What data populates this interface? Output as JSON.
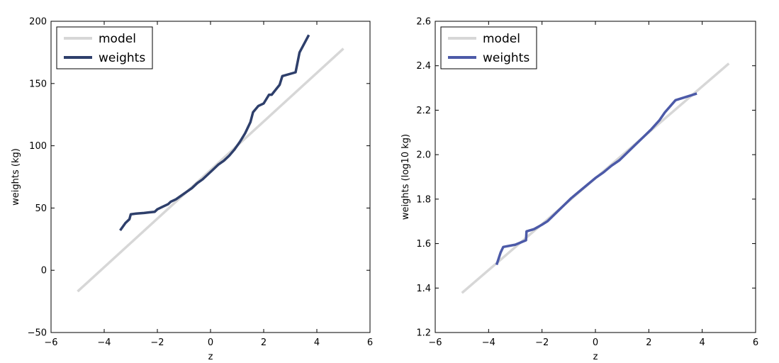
{
  "chart_data": [
    {
      "type": "line",
      "xlabel": "z",
      "ylabel": "weights (kg)",
      "xlim": [
        -6,
        6
      ],
      "ylim": [
        -50,
        200
      ],
      "xticks": [
        -6,
        -4,
        -2,
        0,
        2,
        4,
        6
      ],
      "yticks": [
        -50,
        0,
        50,
        100,
        150,
        200
      ],
      "xtick_labels": [
        "−6",
        "−4",
        "−2",
        "0",
        "2",
        "4",
        "6"
      ],
      "ytick_labels": [
        "−50",
        "0",
        "50",
        "100",
        "150",
        "200"
      ],
      "legend_position": "top-left",
      "grid": false,
      "series": [
        {
          "name": "model",
          "color": "#d7d7d7",
          "x": [
            -5.0,
            5.0
          ],
          "y": [
            -17.0,
            178.0
          ]
        },
        {
          "name": "weights",
          "color": "#2e3f6b",
          "x": [
            -3.4,
            -3.2,
            -3.05,
            -3.0,
            -2.8,
            -2.5,
            -2.3,
            -2.1,
            -2.0,
            -1.8,
            -1.6,
            -1.5,
            -1.3,
            -1.1,
            -0.9,
            -0.7,
            -0.5,
            -0.3,
            -0.1,
            0.1,
            0.3,
            0.5,
            0.7,
            0.9,
            1.1,
            1.3,
            1.5,
            1.6,
            1.8,
            2.0,
            2.2,
            2.3,
            2.6,
            2.7,
            3.2,
            3.35,
            3.7
          ],
          "y": [
            32,
            38,
            41,
            45,
            45.5,
            46,
            46.5,
            47,
            49,
            51,
            53,
            55,
            57,
            60,
            63,
            66,
            70,
            73,
            77,
            81,
            85,
            88,
            92,
            97,
            103,
            110,
            119,
            127,
            132,
            134,
            141,
            141,
            149,
            156,
            159,
            175,
            189
          ]
        }
      ]
    },
    {
      "type": "line",
      "xlabel": "z",
      "ylabel": "weights (log10 kg)",
      "xlim": [
        -6,
        6
      ],
      "ylim": [
        1.2,
        2.6
      ],
      "xticks": [
        -6,
        -4,
        -2,
        0,
        2,
        4,
        6
      ],
      "yticks": [
        1.2,
        1.4,
        1.6,
        1.8,
        2.0,
        2.2,
        2.4,
        2.6
      ],
      "xtick_labels": [
        "−6",
        "−4",
        "−2",
        "0",
        "2",
        "4",
        "6"
      ],
      "ytick_labels": [
        "1.2",
        "1.4",
        "1.6",
        "1.8",
        "2.0",
        "2.2",
        "2.4",
        "2.6"
      ],
      "legend_position": "top-left",
      "grid": false,
      "series": [
        {
          "name": "model",
          "color": "#d7d7d7",
          "x": [
            -5.0,
            5.0
          ],
          "y": [
            1.378,
            2.41
          ]
        },
        {
          "name": "weights",
          "color": "#4c5aa8",
          "x": [
            -3.7,
            -3.55,
            -3.45,
            -3.0,
            -2.6,
            -2.58,
            -2.3,
            -2.0,
            -1.8,
            -1.5,
            -1.2,
            -0.9,
            -0.6,
            -0.3,
            0.0,
            0.3,
            0.6,
            0.9,
            1.2,
            1.5,
            1.8,
            2.1,
            2.4,
            2.6,
            3.0,
            3.8
          ],
          "y": [
            1.505,
            1.56,
            1.585,
            1.595,
            1.615,
            1.655,
            1.665,
            1.685,
            1.7,
            1.735,
            1.77,
            1.805,
            1.835,
            1.865,
            1.895,
            1.92,
            1.95,
            1.975,
            2.01,
            2.045,
            2.08,
            2.115,
            2.155,
            2.19,
            2.245,
            2.275
          ]
        }
      ]
    }
  ]
}
